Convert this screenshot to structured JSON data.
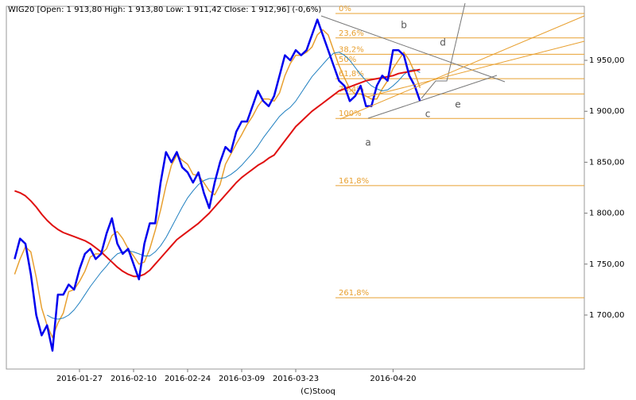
{
  "chart_data": {
    "type": "line",
    "title": "WIG20 [Open: 1 913,80  High: 1 913,80  Low: 1 911,42  Close: 1 912,96] (-0,6%)",
    "footer": "(C)Stooq",
    "categories": [
      null,
      null,
      null,
      null,
      null,
      null,
      null,
      null,
      null,
      null,
      null,
      null,
      "2016-01-27",
      null,
      null,
      null,
      null,
      null,
      null,
      null,
      null,
      null,
      "2016-02-10",
      null,
      null,
      null,
      null,
      null,
      null,
      null,
      null,
      null,
      "2016-02-24",
      null,
      null,
      null,
      null,
      null,
      null,
      null,
      null,
      null,
      "2016-03-09",
      null,
      null,
      null,
      null,
      null,
      null,
      null,
      null,
      null,
      "2016-03-23",
      null,
      null,
      null,
      null,
      null,
      null,
      null,
      null,
      null,
      null,
      null,
      null,
      null,
      null,
      null,
      null,
      null,
      "2016-04-20",
      null,
      null,
      null,
      null,
      null
    ],
    "series": [
      {
        "color": "#e8a030",
        "width": 1.5,
        "values": [
          1740,
          1755,
          1767,
          1762,
          1737,
          1707,
          1690,
          1678,
          1692,
          1702,
          1723,
          1725,
          1733,
          1743,
          1757,
          1760,
          1760,
          1765,
          1778,
          1782,
          1775,
          1765,
          1758,
          1750,
          1752,
          1765,
          1783,
          1803,
          1827,
          1847,
          1857,
          1852,
          1848,
          1838,
          1837,
          1830,
          1822,
          1818,
          1828,
          1848,
          1858,
          1868,
          1877,
          1887,
          1895,
          1905,
          1912,
          1912,
          1910,
          1918,
          1935,
          1947,
          1955,
          1955,
          1958,
          1963,
          1975,
          1980,
          1975,
          1960,
          1945,
          1933,
          1922,
          1917,
          1917,
          1915,
          1912,
          1912,
          1922,
          1930,
          1942,
          1950,
          1958,
          1950,
          1938,
          1923
        ]
      },
      {
        "color": "#1f7fc0",
        "width": 1,
        "values": [
          null,
          null,
          null,
          null,
          null,
          null,
          1700,
          1697,
          1696,
          1697,
          1700,
          1705,
          1712,
          1720,
          1728,
          1735,
          1742,
          1748,
          1755,
          1760,
          1762,
          1763,
          1762,
          1760,
          1758,
          1758,
          1762,
          1768,
          1776,
          1786,
          1796,
          1806,
          1815,
          1822,
          1828,
          1832,
          1834,
          1834,
          1834,
          1835,
          1838,
          1842,
          1847,
          1853,
          1859,
          1866,
          1874,
          1881,
          1888,
          1895,
          1900,
          1904,
          1910,
          1918,
          1926,
          1934,
          1940,
          1946,
          1952,
          1957,
          1958,
          1955,
          1950,
          1943,
          1936,
          1930,
          1925,
          1922,
          1920,
          1921,
          1925,
          1930,
          1936,
          1940,
          1941,
          1938
        ]
      },
      {
        "color": "#e01010",
        "width": 2,
        "values": [
          1822,
          1820,
          1817,
          1812,
          1806,
          1799,
          1793,
          1788,
          1784,
          1781,
          1779,
          1777,
          1775,
          1773,
          1770,
          1766,
          1762,
          1757,
          1752,
          1747,
          1743,
          1740,
          1738,
          1738,
          1740,
          1744,
          1750,
          1756,
          1762,
          1768,
          1774,
          1778,
          1782,
          1786,
          1790,
          1795,
          1800,
          1806,
          1812,
          1818,
          1824,
          1830,
          1835,
          1839,
          1843,
          1847,
          1850,
          1854,
          1857,
          1864,
          1871,
          1878,
          1885,
          1890,
          1895,
          1900,
          1904,
          1908,
          1912,
          1916,
          1920,
          1922,
          1924,
          1926,
          1928,
          1930,
          1931,
          1932,
          1933,
          1934,
          1935,
          1937,
          1938,
          1939,
          1940,
          1941
        ]
      },
      {
        "color": "#0000ee",
        "width": 2.5,
        "values": [
          1755,
          1775,
          1770,
          1740,
          1700,
          1680,
          1690,
          1665,
          1720,
          1720,
          1730,
          1725,
          1745,
          1760,
          1765,
          1755,
          1760,
          1780,
          1795,
          1770,
          1760,
          1765,
          1750,
          1735,
          1770,
          1790,
          1790,
          1830,
          1860,
          1850,
          1860,
          1845,
          1840,
          1830,
          1840,
          1820,
          1805,
          1830,
          1850,
          1865,
          1860,
          1880,
          1890,
          1890,
          1905,
          1920,
          1910,
          1905,
          1915,
          1935,
          1955,
          1950,
          1960,
          1955,
          1960,
          1975,
          1990,
          1975,
          1960,
          1945,
          1930,
          1925,
          1910,
          1915,
          1925,
          1905,
          1905,
          1925,
          1935,
          1930,
          1960,
          1960,
          1955,
          1935,
          1925,
          1910
        ]
      }
    ],
    "ylim": [
      1647,
      2003
    ],
    "yticks": [
      {
        "value": 1700,
        "label": "1 700,00"
      },
      {
        "value": 1750,
        "label": "1 750,00"
      },
      {
        "value": 1800,
        "label": "1 800,00"
      },
      {
        "value": 1850,
        "label": "1 850,00"
      },
      {
        "value": 1900,
        "label": "1 900,00"
      },
      {
        "value": 1950,
        "label": "1 950,00"
      }
    ],
    "fib_color": "#e8a030",
    "fib_levels": [
      {
        "label": "0%",
        "value": 1996
      },
      {
        "label": "23,6%",
        "value": 1972
      },
      {
        "label": "38,2%",
        "value": 1956
      },
      {
        "label": "50%",
        "value": 1946
      },
      {
        "label": "61,8%",
        "value": 1932
      },
      {
        "label": "76,4%",
        "value": 1917
      },
      {
        "label": "100%",
        "value": 1893
      },
      {
        "label": "161,8%",
        "value": 1827
      },
      {
        "label": "261,8%",
        "value": 1717
      }
    ],
    "wave_labels": [
      "a",
      "b",
      "c",
      "d",
      "e"
    ]
  }
}
